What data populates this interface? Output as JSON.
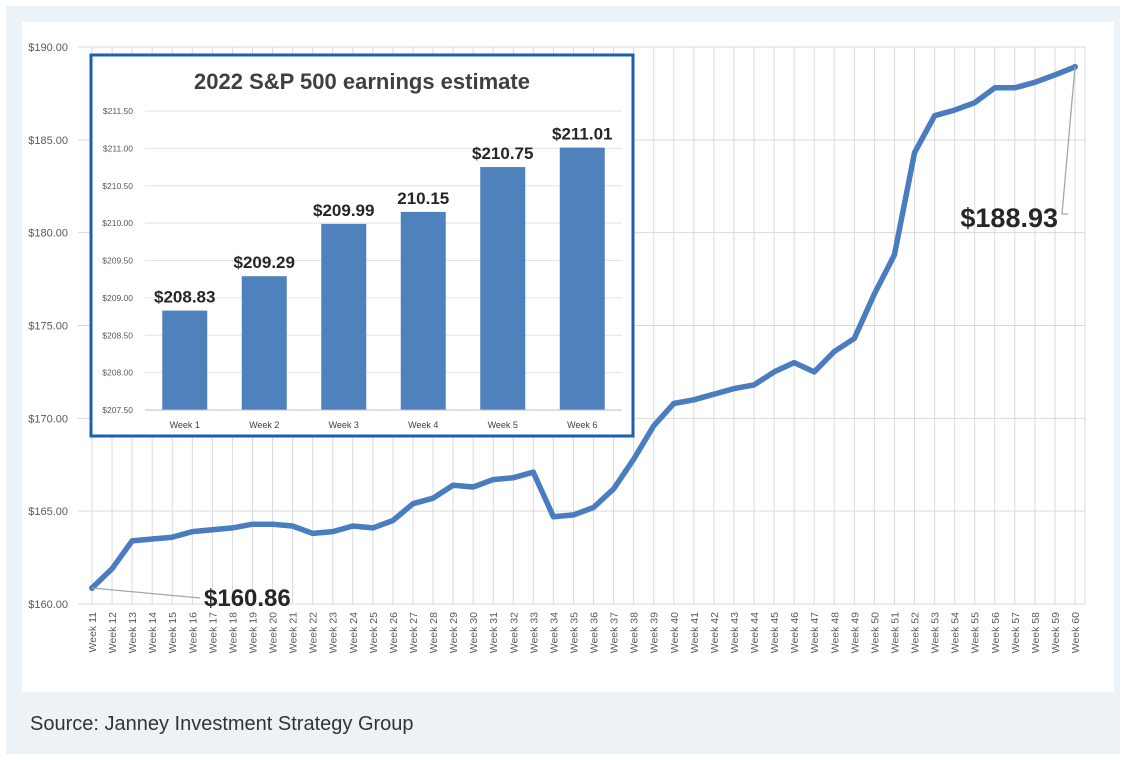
{
  "caption": "Source: Janney Investment Strategy Group",
  "colors": {
    "line": "#4a7cc0",
    "bar": "#4f81bd",
    "inset_border": "#1b5fae",
    "grid": "#d9d9d9",
    "frame": "#edf2f6"
  },
  "chart_data": [
    {
      "type": "line",
      "title": "",
      "xlabel": "",
      "ylabel": "",
      "ylim": [
        160,
        190
      ],
      "yticks": [
        "$160.00",
        "$165.00",
        "$170.00",
        "$175.00",
        "$180.00",
        "$185.00",
        "$190.00"
      ],
      "grid": true,
      "x": [
        "Week 11",
        "Week 12",
        "Week 13",
        "Week 14",
        "Week 15",
        "Week 16",
        "Week 17",
        "Week 18",
        "Week 19",
        "Week 20",
        "Week 21",
        "Week 22",
        "Week 23",
        "Week 24",
        "Week 25",
        "Week 26",
        "Week 27",
        "Week 28",
        "Week 29",
        "Week 30",
        "Week 31",
        "Week 32",
        "Week 33",
        "Week 34",
        "Week 35",
        "Week 36",
        "Week 37",
        "Week 38",
        "Week 39",
        "Week 40",
        "Week 41",
        "Week 42",
        "Week 43",
        "Week 44",
        "Week 45",
        "Week 46",
        "Week 47",
        "Week 48",
        "Week 49",
        "Week 50",
        "Week 51",
        "Week 52",
        "Week 53",
        "Week 54",
        "Week 55",
        "Week 56",
        "Week 57",
        "Week 58",
        "Week 59",
        "Week 60"
      ],
      "values": [
        160.86,
        161.9,
        163.4,
        163.5,
        163.6,
        163.9,
        164.0,
        164.1,
        164.3,
        164.3,
        164.2,
        163.8,
        163.9,
        164.2,
        164.1,
        164.5,
        165.4,
        165.7,
        166.4,
        166.3,
        166.7,
        166.8,
        167.1,
        164.7,
        164.8,
        165.2,
        166.2,
        167.8,
        169.6,
        170.8,
        171.0,
        171.3,
        171.6,
        171.8,
        172.5,
        173.0,
        172.5,
        173.6,
        174.3,
        176.7,
        178.8,
        184.3,
        186.3,
        186.6,
        187.0,
        187.8,
        187.8,
        188.1,
        188.5,
        188.93
      ],
      "annotations": [
        {
          "label": "$160.86",
          "week": "Week 11",
          "value": 160.86
        },
        {
          "label": "$188.93",
          "week": "Week 60",
          "value": 188.93
        }
      ]
    },
    {
      "type": "bar",
      "title": "2022 S&P 500 earnings estimate",
      "xlabel": "",
      "ylabel": "",
      "ylim": [
        207.5,
        211.5
      ],
      "yticks": [
        "$207.50",
        "$208.00",
        "$208.50",
        "$209.00",
        "$209.50",
        "$210.00",
        "$210.50",
        "$211.00",
        "$211.50"
      ],
      "categories": [
        "Week 1",
        "Week 2",
        "Week 3",
        "Week 4",
        "Week 5",
        "Week 6"
      ],
      "values": [
        208.83,
        209.29,
        209.99,
        210.15,
        210.75,
        211.01
      ],
      "data_labels": [
        "$208.83",
        "$209.29",
        "$209.99",
        "210.15",
        "$210.75",
        "$211.01"
      ]
    }
  ]
}
